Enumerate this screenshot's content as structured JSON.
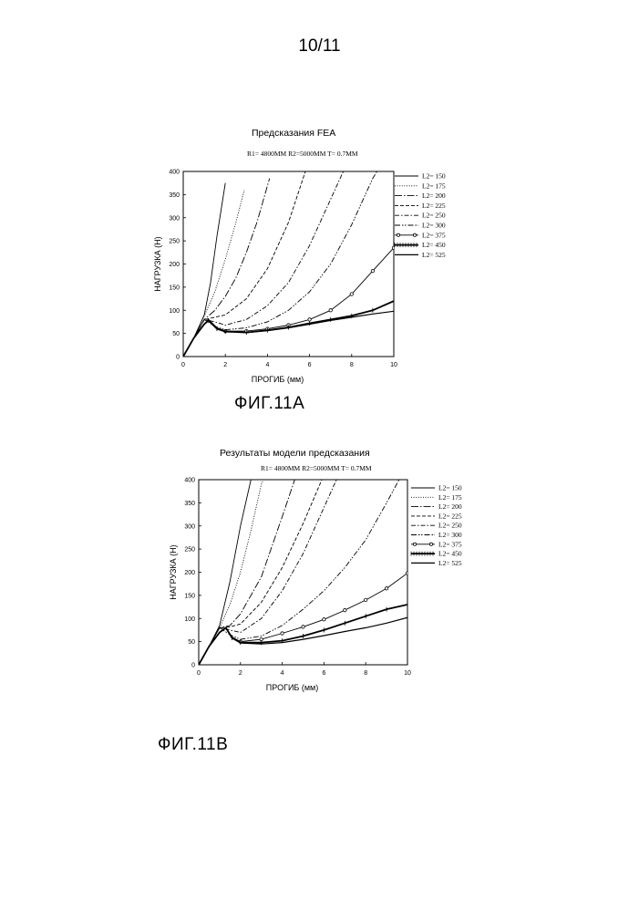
{
  "page_number": "10/11",
  "figures": [
    {
      "label": "ФИГ.11A",
      "title": "Предсказания FEA",
      "subtitle": "R1= 4800MM R2=5000MM T= 0.7MM"
    },
    {
      "label": "ФИГ.11B",
      "title": "Результаты  модели предсказания",
      "subtitle": "R1= 4800MM R2=5000MM T= 0.7MM"
    }
  ],
  "chart_data": [
    {
      "type": "line",
      "title": "Предсказания FEA",
      "subtitle": "R1= 4800MM R2=5000MM T= 0.7MM",
      "xlabel": "ПРОГИБ (мм)",
      "ylabel": "НАГРУЗКА (Н)",
      "xlim": [
        0,
        10
      ],
      "ylim": [
        0,
        400
      ],
      "xticks": [
        0,
        2,
        4,
        6,
        8,
        10
      ],
      "yticks": [
        0,
        50,
        100,
        150,
        200,
        250,
        300,
        350,
        400
      ],
      "grid": false,
      "legend_position": "right",
      "series": [
        {
          "name": "L2= 150",
          "style": "solid",
          "x": [
            0,
            0.5,
            1.0,
            1.3,
            1.6,
            2.0
          ],
          "y": [
            0,
            40,
            90,
            160,
            260,
            375
          ]
        },
        {
          "name": "L2= 175",
          "style": "dotted",
          "x": [
            0,
            0.5,
            1.0,
            1.5,
            2.0,
            2.5,
            2.9
          ],
          "y": [
            0,
            40,
            88,
            140,
            210,
            290,
            360
          ]
        },
        {
          "name": "L2= 200",
          "style": "dashdot-long",
          "x": [
            0,
            0.5,
            1.0,
            1.5,
            2.0,
            2.5,
            3.0,
            3.5,
            4.1
          ],
          "y": [
            0,
            40,
            80,
            100,
            130,
            170,
            225,
            290,
            385
          ]
        },
        {
          "name": "L2= 225",
          "style": "dashed",
          "x": [
            0,
            0.5,
            1.0,
            1.5,
            2.0,
            3.0,
            4.0,
            5.0,
            5.8
          ],
          "y": [
            0,
            40,
            80,
            85,
            90,
            125,
            190,
            290,
            400
          ]
        },
        {
          "name": "L2= 250",
          "style": "dashdot",
          "x": [
            0,
            0.5,
            1.0,
            1.5,
            2.0,
            3.0,
            4.0,
            5.0,
            6.0,
            7.0,
            7.6
          ],
          "y": [
            0,
            40,
            80,
            75,
            68,
            80,
            110,
            160,
            240,
            340,
            400
          ]
        },
        {
          "name": "L2= 300",
          "style": "dashdotdot",
          "x": [
            0,
            0.5,
            1.0,
            1.5,
            2.0,
            3.0,
            4.0,
            5.0,
            6.0,
            7.0,
            8.0,
            9.0,
            9.2
          ],
          "y": [
            0,
            40,
            80,
            65,
            58,
            62,
            75,
            100,
            140,
            200,
            285,
            385,
            400
          ]
        },
        {
          "name": "L2= 375",
          "style": "circles",
          "x": [
            0,
            0.5,
            1.0,
            1.2,
            1.6,
            2.0,
            3.0,
            4.0,
            5.0,
            6.0,
            7.0,
            8.0,
            9.0,
            10.0
          ],
          "y": [
            0,
            40,
            70,
            78,
            60,
            55,
            55,
            60,
            68,
            80,
            100,
            135,
            185,
            235
          ]
        },
        {
          "name": "L2= 450",
          "style": "crosses",
          "x": [
            0,
            0.5,
            1.0,
            1.2,
            1.6,
            2.0,
            3.0,
            4.0,
            5.0,
            6.0,
            7.0,
            8.0,
            9.0,
            10.0
          ],
          "y": [
            0,
            40,
            70,
            78,
            60,
            54,
            52,
            57,
            63,
            72,
            80,
            88,
            100,
            120
          ]
        },
        {
          "name": "L2= 525",
          "style": "solid-heavy",
          "x": [
            0,
            0.5,
            1.0,
            1.2,
            1.6,
            2.0,
            3.0,
            4.0,
            5.0,
            6.0,
            7.0,
            8.0,
            9.0,
            10.0
          ],
          "y": [
            0,
            40,
            70,
            80,
            62,
            55,
            52,
            56,
            62,
            70,
            78,
            85,
            92,
            98
          ]
        }
      ]
    },
    {
      "type": "line",
      "title": "Результаты  модели предсказания",
      "subtitle": "R1= 4800MM R2=5000MM T= 0.7MM",
      "xlabel": "ПРОГИБ (мм)",
      "ylabel": "НАГРУЗКА (Н)",
      "xlim": [
        0,
        10
      ],
      "ylim": [
        0,
        400
      ],
      "xticks": [
        0,
        2,
        4,
        6,
        8,
        10
      ],
      "yticks": [
        0,
        50,
        100,
        150,
        200,
        250,
        300,
        350,
        400
      ],
      "grid": false,
      "legend_position": "right",
      "series": [
        {
          "name": "L2= 150",
          "style": "solid",
          "x": [
            0,
            0.5,
            1.0,
            1.5,
            2.0,
            2.5,
            2.0
          ],
          "y": [
            0,
            40,
            85,
            180,
            300,
            400,
            300
          ]
        },
        {
          "name": "L2= 175",
          "style": "dotted",
          "x": [
            0,
            0.5,
            1.0,
            1.5,
            2.0,
            2.5,
            3.0,
            3.1
          ],
          "y": [
            0,
            40,
            80,
            130,
            200,
            290,
            390,
            400
          ]
        },
        {
          "name": "L2= 200",
          "style": "dashdot-long",
          "x": [
            0,
            0.5,
            1.0,
            1.5,
            2.0,
            3.0,
            4.0,
            4.6
          ],
          "y": [
            0,
            40,
            80,
            85,
            110,
            190,
            320,
            400
          ]
        },
        {
          "name": "L2= 225",
          "style": "dashed",
          "x": [
            0,
            0.5,
            1.0,
            1.5,
            2.0,
            3.0,
            4.0,
            5.0,
            5.9
          ],
          "y": [
            0,
            40,
            80,
            82,
            88,
            135,
            210,
            305,
            400
          ]
        },
        {
          "name": "L2= 250",
          "style": "dashdot",
          "x": [
            0,
            0.5,
            1.0,
            1.5,
            2.0,
            3.0,
            4.0,
            5.0,
            6.0,
            6.6
          ],
          "y": [
            0,
            40,
            80,
            75,
            70,
            100,
            160,
            240,
            340,
            400
          ]
        },
        {
          "name": "L2= 300",
          "style": "dashdotdot",
          "x": [
            0,
            0.5,
            1.0,
            1.5,
            2.0,
            3.0,
            4.0,
            5.0,
            6.0,
            7.0,
            8.0,
            9.0,
            9.6
          ],
          "y": [
            0,
            40,
            80,
            65,
            55,
            62,
            85,
            120,
            160,
            210,
            270,
            350,
            400
          ]
        },
        {
          "name": "L2= 375",
          "style": "circles",
          "x": [
            0,
            0.5,
            1.0,
            1.3,
            1.6,
            2.0,
            3.0,
            4.0,
            5.0,
            6.0,
            7.0,
            8.0,
            9.0,
            10.0
          ],
          "y": [
            0,
            40,
            70,
            80,
            60,
            50,
            55,
            68,
            82,
            98,
            118,
            140,
            165,
            198
          ]
        },
        {
          "name": "L2= 450",
          "style": "crosses",
          "x": [
            0,
            0.5,
            1.0,
            1.3,
            1.6,
            2.0,
            3.0,
            4.0,
            5.0,
            6.0,
            7.0,
            8.0,
            9.0,
            10.0
          ],
          "y": [
            0,
            40,
            70,
            80,
            58,
            48,
            48,
            52,
            62,
            75,
            90,
            105,
            120,
            130
          ]
        },
        {
          "name": "L2= 525",
          "style": "solid-heavy",
          "x": [
            0,
            0.5,
            1.0,
            1.3,
            1.6,
            2.0,
            3.0,
            4.0,
            5.0,
            6.0,
            7.0,
            8.0,
            9.0,
            10.0
          ],
          "y": [
            0,
            40,
            70,
            80,
            58,
            47,
            45,
            48,
            55,
            63,
            72,
            80,
            90,
            102
          ]
        }
      ]
    }
  ]
}
